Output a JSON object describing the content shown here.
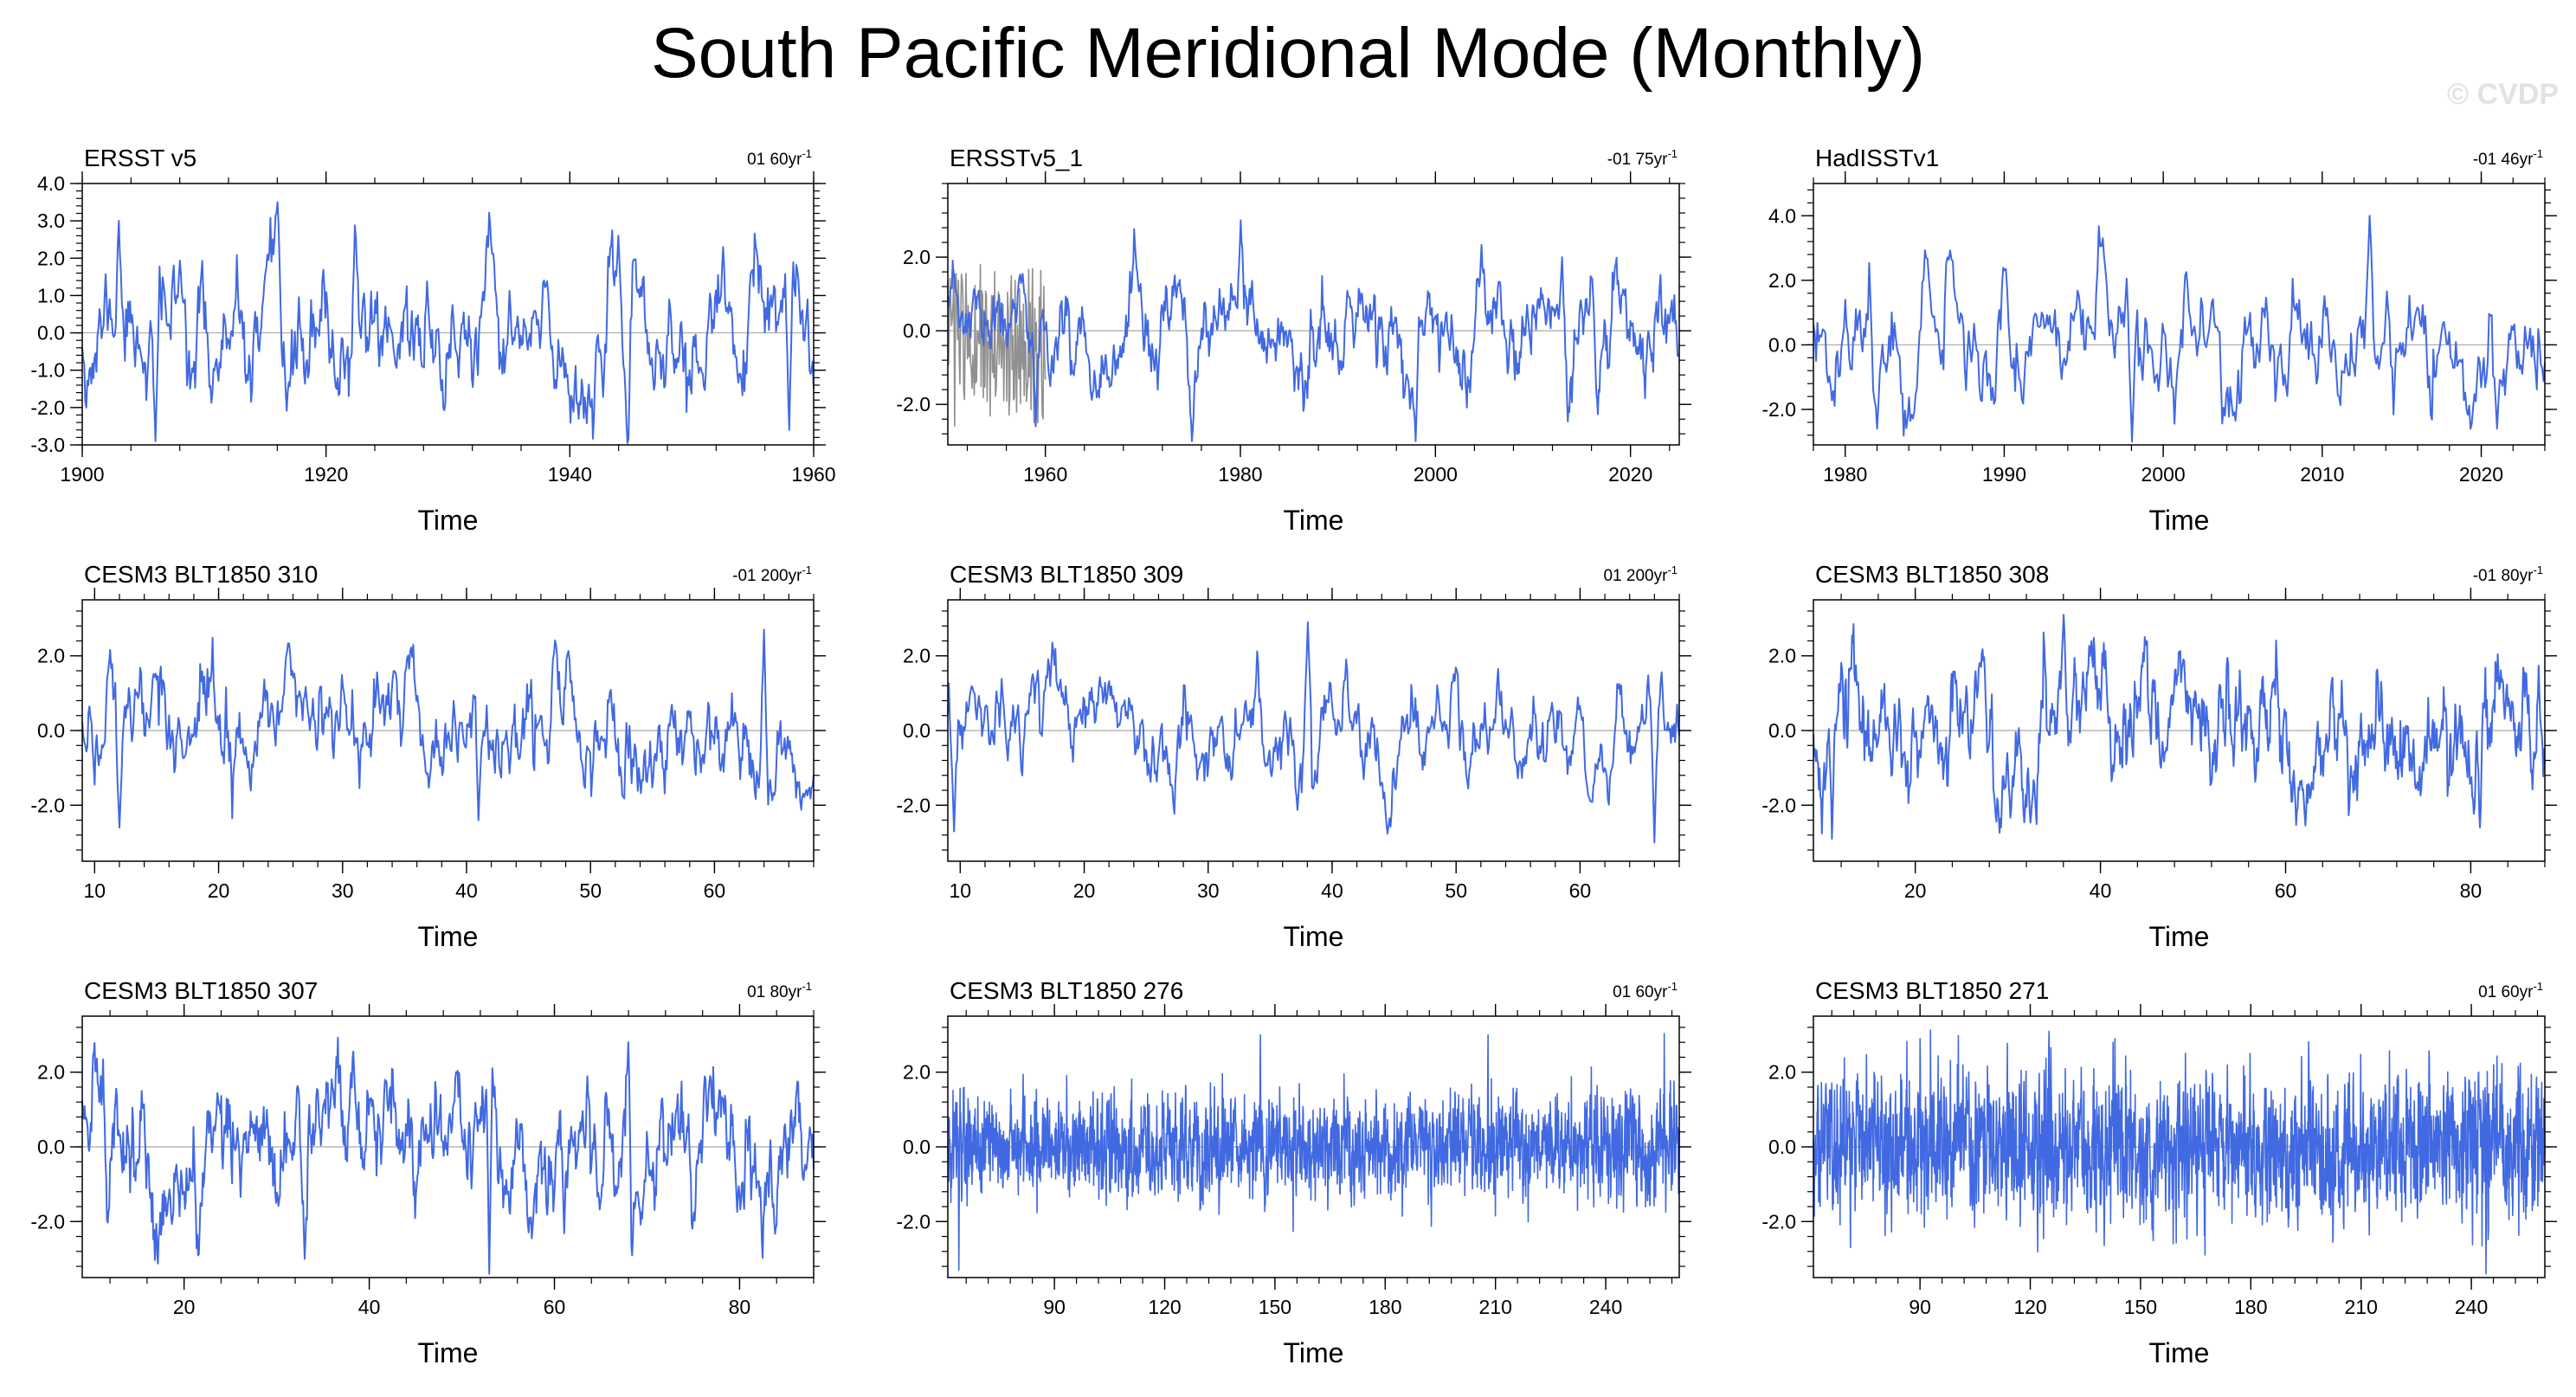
{
  "figure": {
    "title": "South Pacific Meridional Mode (Monthly)",
    "watermark": "© CVDP",
    "line_color": "#4169e1",
    "zero_line_color": "#aaaaaa",
    "frame_color": "#000000"
  },
  "chart_data": [
    {
      "type": "line",
      "title": "ERSST v5",
      "subtitle": "01 60yr",
      "subtitle_sup": "-1",
      "xlabel": "Time",
      "ylabel": "",
      "xlim": [
        1900,
        1960
      ],
      "ylim": [
        -3,
        4
      ],
      "xticks": [
        1900,
        1920,
        1940,
        1960
      ],
      "xtick_labels": [
        "1900",
        "1920",
        "1940",
        "1960"
      ],
      "yticks": [
        -3,
        -2,
        -1,
        0,
        1,
        2,
        3,
        4
      ],
      "ytick_labels": [
        "-3.0",
        "-2.0",
        "-1.0",
        "0.0",
        "1.0",
        "2.0",
        "3.0",
        "4.0"
      ],
      "n_points": 720,
      "min": -2.9,
      "max": 3.5,
      "approx_extrema": [
        [
          1903,
          3.0
        ],
        [
          1906,
          -2.9
        ],
        [
          1916,
          3.5
        ],
        [
          1944,
          2.6
        ],
        [
          1958,
          -2.6
        ]
      ],
      "style": "smooth",
      "seed": 11
    },
    {
      "type": "line",
      "title": "ERSSTv5_1",
      "subtitle": "-01 75yr",
      "subtitle_sup": "-1",
      "xlabel": "Time",
      "ylabel": "",
      "xlim": [
        1950,
        2025
      ],
      "ylim": [
        -3.1,
        4
      ],
      "xticks": [
        1960,
        1980,
        2000,
        2020
      ],
      "xtick_labels": [
        "1960",
        "1980",
        "2000",
        "2020"
      ],
      "yticks": [
        -2,
        0,
        2
      ],
      "ytick_labels": [
        "-2.0",
        "0.0",
        "2.0"
      ],
      "n_points": 900,
      "min": -3.0,
      "max": 3.0,
      "approx_extrema": [
        [
          1959,
          -2.6
        ],
        [
          1975,
          -3.0
        ],
        [
          1980,
          3.0
        ],
        [
          1998,
          -3.0
        ],
        [
          2013,
          2.0
        ]
      ],
      "style": "smooth",
      "seed": 23,
      "secondary_series": {
        "name": "ensemble-spread",
        "color": "#909090",
        "xlim": [
          1950,
          1960
        ],
        "range": [
          -2.6,
          1.8
        ]
      }
    },
    {
      "type": "line",
      "title": "HadISSTv1",
      "subtitle": "-01 46yr",
      "subtitle_sup": "-1",
      "xlabel": "Time",
      "ylabel": "",
      "xlim": [
        1978,
        2024
      ],
      "ylim": [
        -3.1,
        5
      ],
      "xticks": [
        1980,
        1990,
        2000,
        2010,
        2020
      ],
      "xtick_labels": [
        "1980",
        "1990",
        "2000",
        "2010",
        "2020"
      ],
      "yticks": [
        -2,
        0,
        2,
        4
      ],
      "ytick_labels": [
        "-2.0",
        "0.0",
        "2.0",
        "4.0"
      ],
      "n_points": 552,
      "min": -3.0,
      "max": 4.0,
      "approx_extrema": [
        [
          1980,
          1.4
        ],
        [
          1982,
          -2.6
        ],
        [
          1998,
          -3.0
        ],
        [
          2013,
          4.0
        ],
        [
          2021,
          -2.6
        ]
      ],
      "style": "smooth",
      "seed": 37
    },
    {
      "type": "line",
      "title": "CESM3 BLT1850 310",
      "subtitle": "-01 200yr",
      "subtitle_sup": "-1",
      "xlabel": "Time",
      "ylabel": "",
      "xlim": [
        9,
        68
      ],
      "ylim": [
        -3.5,
        3.5
      ],
      "xticks": [
        10,
        20,
        30,
        40,
        50,
        60
      ],
      "xtick_labels": [
        "10",
        "20",
        "30",
        "40",
        "50",
        "60"
      ],
      "yticks": [
        -2,
        0,
        2
      ],
      "ytick_labels": [
        "-2.0",
        "0.0",
        "2.0"
      ],
      "n_points": 708,
      "min": -2.6,
      "max": 2.7,
      "approx_extrema": [
        [
          12,
          -2.6
        ],
        [
          41,
          -2.4
        ],
        [
          64,
          2.7
        ]
      ],
      "style": "smooth",
      "seed": 41
    },
    {
      "type": "line",
      "title": "CESM3 BLT1850 309",
      "subtitle": "01 200yr",
      "subtitle_sup": "-1",
      "xlabel": "Time",
      "ylabel": "",
      "xlim": [
        9,
        68
      ],
      "ylim": [
        -3.5,
        3.5
      ],
      "xticks": [
        10,
        20,
        30,
        40,
        50,
        60
      ],
      "xtick_labels": [
        "10",
        "20",
        "30",
        "40",
        "50",
        "60"
      ],
      "yticks": [
        -2,
        0,
        2
      ],
      "ytick_labels": [
        "-2.0",
        "0.0",
        "2.0"
      ],
      "n_points": 708,
      "min": -3.0,
      "max": 2.9,
      "approx_extrema": [
        [
          9.5,
          -2.7
        ],
        [
          38,
          2.9
        ],
        [
          66,
          -3.0
        ]
      ],
      "style": "smooth",
      "seed": 53
    },
    {
      "type": "line",
      "title": "CESM3 BLT1850 308",
      "subtitle": "-01 80yr",
      "subtitle_sup": "-1",
      "xlabel": "Time",
      "ylabel": "",
      "xlim": [
        9,
        88
      ],
      "ylim": [
        -3.5,
        3.5
      ],
      "xticks": [
        20,
        40,
        60,
        80
      ],
      "xtick_labels": [
        "20",
        "40",
        "60",
        "80"
      ],
      "yticks": [
        -2,
        0,
        2
      ],
      "ytick_labels": [
        "-2.0",
        "0.0",
        "2.0"
      ],
      "n_points": 948,
      "min": -2.9,
      "max": 3.1,
      "approx_extrema": [
        [
          11,
          -2.9
        ],
        [
          36,
          3.1
        ],
        [
          81,
          -2.6
        ]
      ],
      "style": "smooth",
      "seed": 67
    },
    {
      "type": "line",
      "title": "CESM3 BLT1850 307",
      "subtitle": "01 80yr",
      "subtitle_sup": "-1",
      "xlabel": "Time",
      "ylabel": "",
      "xlim": [
        9,
        88
      ],
      "ylim": [
        -3.5,
        3.5
      ],
      "xticks": [
        20,
        40,
        60,
        80
      ],
      "xtick_labels": [
        "20",
        "40",
        "60",
        "80"
      ],
      "yticks": [
        -2,
        0,
        2
      ],
      "ytick_labels": [
        "-2.0",
        "0.0",
        "2.0"
      ],
      "n_points": 948,
      "min": -3.4,
      "max": 2.8,
      "approx_extrema": [
        [
          33,
          -3.0
        ],
        [
          53,
          -3.4
        ],
        [
          68,
          2.8
        ]
      ],
      "style": "smooth",
      "seed": 79
    },
    {
      "type": "line",
      "title": "CESM3 BLT1850 276",
      "subtitle": "01 60yr",
      "subtitle_sup": "-1",
      "xlabel": "Time",
      "ylabel": "",
      "xlim": [
        61,
        260
      ],
      "ylim": [
        -3.5,
        3.5
      ],
      "xticks": [
        90,
        120,
        150,
        180,
        210,
        240
      ],
      "xtick_labels": [
        "90",
        "120",
        "150",
        "180",
        "210",
        "240"
      ],
      "yticks": [
        -2,
        0,
        2
      ],
      "ytick_labels": [
        "-2.0",
        "0.0",
        "2.0"
      ],
      "n_points": 2388,
      "min": -3.3,
      "max": 3.0,
      "approx_extrema": [
        [
          64,
          -3.3
        ],
        [
          146,
          3.0
        ],
        [
          208,
          3.0
        ]
      ],
      "style": "noisy",
      "seed": 83
    },
    {
      "type": "line",
      "title": "CESM3 BLT1850 271",
      "subtitle": "01 60yr",
      "subtitle_sup": "-1",
      "xlabel": "Time",
      "ylabel": "",
      "xlim": [
        61,
        260
      ],
      "ylim": [
        -3.5,
        3.5
      ],
      "xticks": [
        90,
        120,
        150,
        180,
        210,
        240
      ],
      "xtick_labels": [
        "90",
        "120",
        "150",
        "180",
        "210",
        "240"
      ],
      "yticks": [
        -2,
        0,
        2
      ],
      "ytick_labels": [
        "-2.0",
        "0.0",
        "2.0"
      ],
      "n_points": 2388,
      "min": -3.4,
      "max": 2.9,
      "approx_extrema": [
        [
          143,
          2.9
        ],
        [
          244,
          -3.4
        ]
      ],
      "style": "noisy",
      "seed": 97
    }
  ]
}
